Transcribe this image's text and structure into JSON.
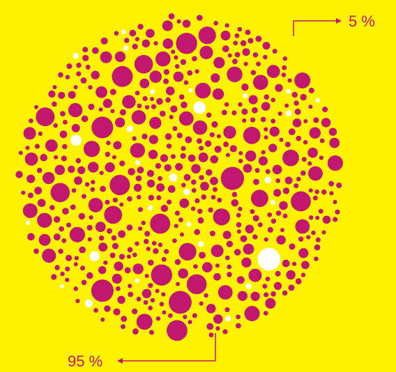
{
  "chart_data": {
    "type": "dots",
    "values": [
      95,
      5
    ],
    "value_labels": [
      "95 %",
      "5 %"
    ],
    "colors": [
      "#c2176f",
      "#ffffff"
    ],
    "background": "#fff200"
  }
}
